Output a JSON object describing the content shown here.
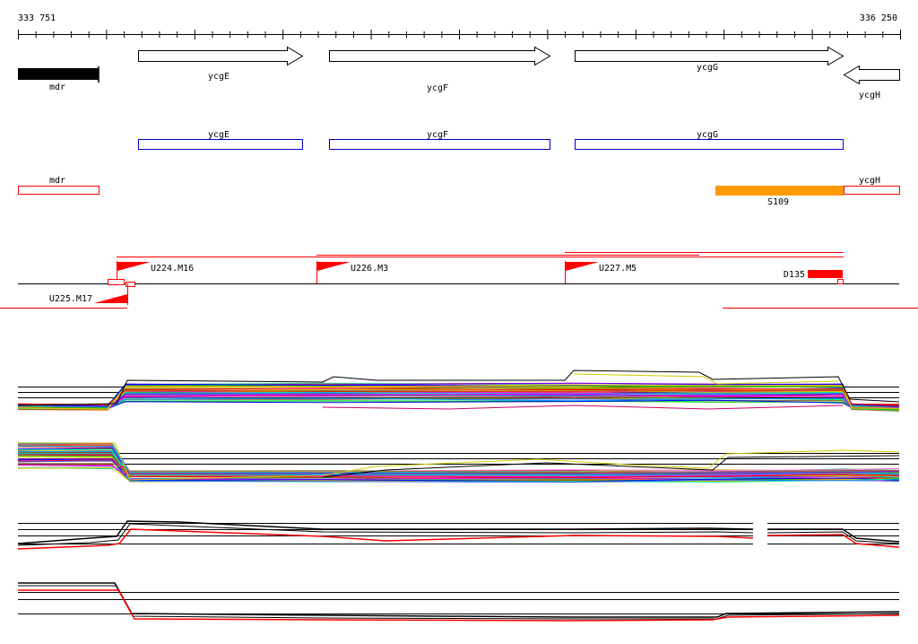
{
  "coordinates": {
    "start": "333 751",
    "end": "336 250"
  },
  "genes": [
    {
      "name": "mdr",
      "style": "block"
    },
    {
      "name": "ycgE",
      "style": "arrow-right"
    },
    {
      "name": "ycgF",
      "style": "arrow-right"
    },
    {
      "name": "ycgG",
      "style": "arrow-right"
    },
    {
      "name": "ycgH",
      "style": "arrow-left"
    }
  ],
  "annotations_blue": [
    {
      "name": "ycgE"
    },
    {
      "name": "ycgF"
    },
    {
      "name": "ycgG"
    }
  ],
  "annotations_red": [
    {
      "name": "mdr"
    },
    {
      "name": "ycgH"
    },
    {
      "name": "S109",
      "fill": "#ff9900"
    }
  ],
  "segments": [
    {
      "name": "U224.M16"
    },
    {
      "name": "U226.M3"
    },
    {
      "name": "U227.M5"
    },
    {
      "name": "U225.M17"
    },
    {
      "name": "D135"
    }
  ],
  "colors": {
    "blue_box": "#0000cc",
    "red_box": "#ff0000",
    "orange": "#ff9900",
    "black": "#000000"
  },
  "tracks": [
    {
      "name": "expression-track-1"
    },
    {
      "name": "expression-track-2"
    },
    {
      "name": "expression-track-3"
    },
    {
      "name": "expression-track-4"
    }
  ]
}
